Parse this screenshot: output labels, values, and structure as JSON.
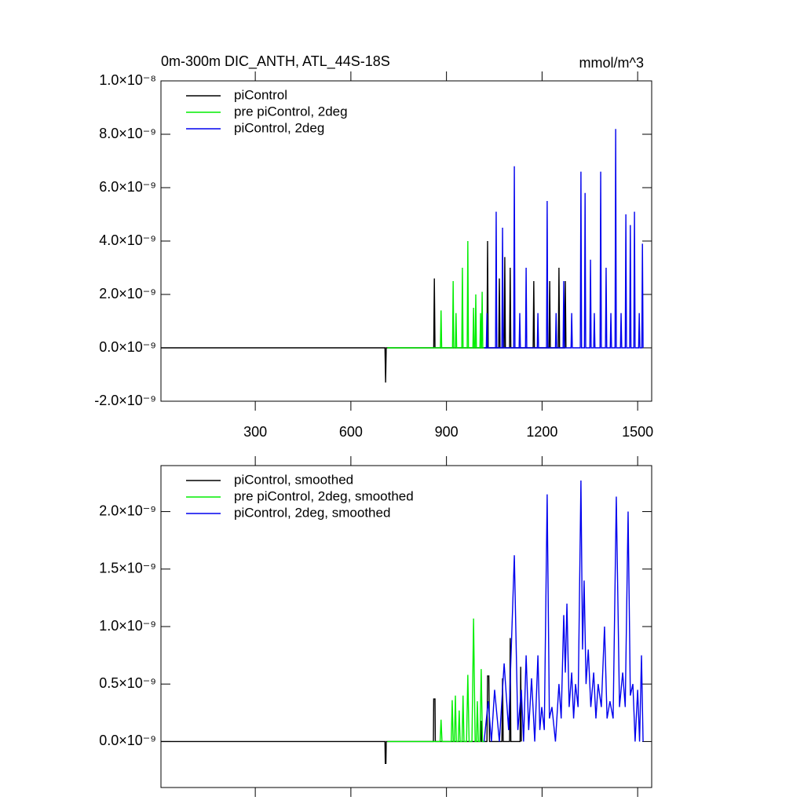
{
  "chart_data": [
    {
      "type": "line",
      "title": "0m-300m DIC_ANTH, ATL_44S-18S",
      "units": "mmol/m^3",
      "xlim": [
        4,
        1544
      ],
      "xticks": [
        300,
        600,
        900,
        1200,
        1500
      ],
      "show_xtick_labels": true,
      "ylim": [
        -2e-09,
        1e-08
      ],
      "yticks": [
        {
          "value": -2e-09,
          "label": "-2.0×10⁻⁹"
        },
        {
          "value": 0,
          "label": "0.0×10⁻⁹"
        },
        {
          "value": 2e-09,
          "label": "2.0×10⁻⁹"
        },
        {
          "value": 4e-09,
          "label": "4.0×10⁻⁹"
        },
        {
          "value": 6e-09,
          "label": "6.0×10⁻⁹"
        },
        {
          "value": 8e-09,
          "label": "8.0×10⁻⁹"
        },
        {
          "value": 1e-08,
          "label": "1.0×10⁻⁸"
        }
      ],
      "series": [
        {
          "name": "piControl",
          "color": "#000000",
          "x": [
            4,
            707,
            709,
            711,
            860,
            862,
            864,
            1027,
            1029,
            1031,
            1064,
            1066,
            1068,
            1081,
            1083,
            1085,
            1098,
            1100,
            1102,
            1172,
            1174,
            1176,
            1222,
            1224,
            1226,
            1251,
            1253,
            1255,
            1271,
            1273,
            1275
          ],
          "values": [
            0,
            0,
            -1.3e-09,
            0,
            0,
            2.6e-09,
            0,
            0,
            4e-09,
            0,
            0,
            2.6e-09,
            0,
            0,
            3.4e-09,
            0,
            0,
            3e-09,
            0,
            0,
            2.5e-09,
            0,
            0,
            2.5e-09,
            0,
            0,
            3e-09,
            0,
            0,
            2.5e-09,
            0
          ]
        },
        {
          "name": "pre piControl, 2deg",
          "color": "#00ee00",
          "x": [
            714,
            881,
            883,
            885,
            919,
            921,
            923,
            928,
            930,
            932,
            948,
            950,
            952,
            965,
            967,
            969,
            983,
            985,
            987,
            990,
            992,
            994,
            1005,
            1007,
            1009,
            1010,
            1012,
            1014,
            1020
          ],
          "values": [
            0,
            0,
            1.4e-09,
            0,
            0,
            2.5e-09,
            0,
            0,
            1.3e-09,
            0,
            0,
            3e-09,
            0,
            0,
            4e-09,
            0,
            0,
            1.5e-09,
            0,
            0,
            2e-09,
            0,
            0,
            1.3e-09,
            0,
            0,
            2.1e-09,
            0,
            0
          ]
        },
        {
          "name": "piControl, 2deg",
          "color": "#0000ee",
          "x": [
            1018,
            1025,
            1027,
            1029,
            1054,
            1056,
            1058,
            1074,
            1076,
            1078,
            1111,
            1113,
            1115,
            1128,
            1130,
            1132,
            1148,
            1150,
            1152,
            1185,
            1187,
            1189,
            1214,
            1216,
            1218,
            1242,
            1244,
            1246,
            1266,
            1268,
            1270,
            1291,
            1293,
            1295,
            1320,
            1322,
            1324,
            1333,
            1335,
            1337,
            1350,
            1352,
            1354,
            1362,
            1364,
            1366,
            1382,
            1384,
            1386,
            1399,
            1401,
            1403,
            1414,
            1416,
            1418,
            1429,
            1431,
            1433,
            1446,
            1448,
            1450,
            1461,
            1463,
            1465,
            1475,
            1477,
            1479,
            1488,
            1490,
            1492,
            1503,
            1505,
            1507,
            1513,
            1515,
            1517
          ],
          "values": [
            0,
            0,
            1.3e-09,
            0,
            0,
            5.1e-09,
            0,
            0,
            4.5e-09,
            0,
            0,
            6.8e-09,
            0,
            0,
            1.3e-09,
            0,
            0,
            3e-09,
            0,
            0,
            1.3e-09,
            0,
            0,
            5.5e-09,
            0,
            0,
            1.3e-09,
            0,
            0,
            2.5e-09,
            0,
            0,
            1.3e-09,
            0,
            0,
            6.6e-09,
            0,
            0,
            5.8e-09,
            0,
            0,
            3.3e-09,
            0,
            0,
            1.3e-09,
            0,
            0,
            6.6e-09,
            0,
            0,
            3e-09,
            0,
            0,
            1.3e-09,
            0,
            0,
            8.2e-09,
            0,
            0,
            1.3e-09,
            0,
            0,
            5e-09,
            0,
            0,
            4.6e-09,
            0,
            0,
            5.1e-09,
            0,
            0,
            1.3e-09,
            0,
            0,
            3.9e-09,
            0
          ]
        }
      ]
    },
    {
      "type": "line",
      "xlim": [
        4,
        1544
      ],
      "xticks": [
        300,
        600,
        900,
        1200,
        1500
      ],
      "show_xtick_labels": false,
      "ylim": [
        -4e-10,
        2.4e-09
      ],
      "yticks": [
        {
          "value": 0,
          "label": "0.0×10⁻⁹"
        },
        {
          "value": 5e-10,
          "label": "0.5×10⁻⁹"
        },
        {
          "value": 1e-09,
          "label": "1.0×10⁻⁹"
        },
        {
          "value": 1.5e-09,
          "label": "1.5×10⁻⁹"
        },
        {
          "value": 2e-09,
          "label": "2.0×10⁻⁹"
        }
      ],
      "series": [
        {
          "name": "piControl, smoothed",
          "color": "#000000",
          "x": [
            4,
            707,
            708,
            710,
            711,
            859,
            860,
            864,
            865,
            1007,
            1009,
            1011,
            1027,
            1029,
            1033,
            1035,
            1074,
            1076,
            1078,
            1098,
            1100,
            1102,
            1131,
            1133,
            1135
          ],
          "values": [
            0,
            0,
            -1.9e-10,
            -1.9e-10,
            0,
            0,
            3.7e-10,
            3.7e-10,
            0,
            0,
            1.8e-10,
            0,
            0,
            5.7e-10,
            5.7e-10,
            0,
            0,
            5.5e-10,
            0,
            0,
            9e-10,
            0,
            0,
            6.5e-10,
            0
          ]
        },
        {
          "name": "pre piControl, 2deg, smoothed",
          "color": "#00ee00",
          "x": [
            714,
            880,
            883,
            886,
            915,
            918,
            921,
            925,
            928,
            931,
            937,
            940,
            943,
            949,
            952,
            955,
            963,
            967,
            971,
            980,
            985,
            990,
            994,
            997,
            1000,
            1005,
            1009,
            1013,
            1020
          ],
          "values": [
            0,
            0,
            1.9e-10,
            0,
            0,
            3.6e-10,
            0,
            0,
            4e-10,
            0,
            0,
            2.7e-10,
            0,
            0,
            4e-10,
            0,
            0,
            5.8e-10,
            0,
            0,
            1.07e-09,
            0,
            0,
            3.5e-10,
            0,
            0,
            6.3e-10,
            0,
            0
          ]
        },
        {
          "name": "piControl, 2deg, smoothed",
          "color": "#0000ee",
          "x": [
            1018,
            1031,
            1041,
            1051,
            1066,
            1081,
            1095,
            1113,
            1124,
            1135,
            1142,
            1150,
            1158,
            1167,
            1177,
            1187,
            1193,
            1199,
            1207,
            1216,
            1223,
            1231,
            1242,
            1253,
            1260,
            1268,
            1273,
            1278,
            1285,
            1293,
            1299,
            1305,
            1313,
            1322,
            1327,
            1332,
            1338,
            1345,
            1353,
            1362,
            1369,
            1376,
            1386,
            1396,
            1404,
            1413,
            1423,
            1433,
            1443,
            1453,
            1461,
            1470,
            1477,
            1485,
            1492,
            1500,
            1506,
            1512,
            1517
          ],
          "values": [
            0,
            3.5e-10,
            0,
            4.5e-10,
            0,
            6.8e-10,
            1e-10,
            1.62e-09,
            1e-10,
            4.5e-10,
            0,
            7.5e-10,
            1e-10,
            5.5e-10,
            0,
            7.5e-10,
            1e-10,
            3e-10,
            1e-10,
            2.15e-09,
            2e-10,
            3e-10,
            0,
            5e-10,
            2e-10,
            1.1e-09,
            6e-10,
            1.2e-09,
            3e-10,
            6e-10,
            2e-10,
            5e-10,
            3e-10,
            2.27e-09,
            8e-10,
            1.4e-09,
            5e-10,
            8e-10,
            3e-10,
            6e-10,
            2e-10,
            5e-10,
            3e-10,
            1e-09,
            2e-10,
            3.5e-10,
            2e-10,
            2.13e-09,
            3e-10,
            6e-10,
            3e-10,
            2e-09,
            4e-10,
            5e-10,
            0,
            4.5e-10,
            0,
            7.5e-10,
            0
          ]
        }
      ]
    }
  ]
}
